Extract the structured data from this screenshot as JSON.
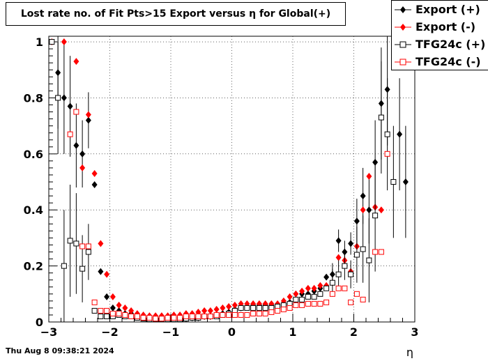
{
  "chart_data": {
    "type": "scatter",
    "title": "Lost rate no. of Fit Pts>15 Export versus η for Global(+)",
    "xlabel": "η",
    "ylabel": "",
    "xlim": [
      -3,
      3
    ],
    "ylim": [
      0,
      1.02
    ],
    "x_ticks": [
      "−3",
      "−2",
      "−1",
      "0",
      "1",
      "2",
      "3"
    ],
    "y_ticks": [
      "0",
      "0.2",
      "0.4",
      "0.6",
      "0.8",
      "1"
    ],
    "grid": true,
    "legend_position": "top-right",
    "timestamp": "Thu Aug  8 09:38:21 2024",
    "series": [
      {
        "name": "Export (+)",
        "color": "#000000",
        "marker": "diamond-filled",
        "points": [
          [
            -2.85,
            0.89,
            0.2
          ],
          [
            -2.75,
            0.8,
            0.2
          ],
          [
            -2.65,
            0.77,
            0.18
          ],
          [
            -2.55,
            0.63,
            0.15
          ],
          [
            -2.45,
            0.6,
            0.12
          ],
          [
            -2.35,
            0.72,
            0.1
          ],
          [
            -2.25,
            0.49,
            0.0
          ],
          [
            -2.15,
            0.18,
            0.0
          ],
          [
            -2.05,
            0.09,
            0.0
          ],
          [
            -1.95,
            0.05,
            0.0
          ],
          [
            -1.85,
            0.04,
            0.0
          ],
          [
            -1.75,
            0.03,
            0.0
          ],
          [
            -1.65,
            0.03,
            0.0
          ],
          [
            -1.55,
            0.02,
            0.0
          ],
          [
            -1.45,
            0.02,
            0.0
          ],
          [
            -1.35,
            0.015,
            0.0
          ],
          [
            -1.25,
            0.015,
            0.0
          ],
          [
            -1.15,
            0.015,
            0.0
          ],
          [
            -1.05,
            0.012,
            0.0
          ],
          [
            -0.95,
            0.012,
            0.0
          ],
          [
            -0.85,
            0.012,
            0.0
          ],
          [
            -0.75,
            0.012,
            0.0
          ],
          [
            -0.65,
            0.015,
            0.0
          ],
          [
            -0.55,
            0.015,
            0.0
          ],
          [
            -0.45,
            0.02,
            0.0
          ],
          [
            -0.35,
            0.02,
            0.0
          ],
          [
            -0.25,
            0.025,
            0.0
          ],
          [
            -0.15,
            0.03,
            0.0
          ],
          [
            -0.05,
            0.035,
            0.0
          ],
          [
            0.05,
            0.045,
            0.0
          ],
          [
            0.15,
            0.05,
            0.0
          ],
          [
            0.25,
            0.055,
            0.0
          ],
          [
            0.35,
            0.06,
            0.0
          ],
          [
            0.45,
            0.06,
            0.0
          ],
          [
            0.55,
            0.06,
            0.0
          ],
          [
            0.65,
            0.06,
            0.0
          ],
          [
            0.75,
            0.06,
            0.0
          ],
          [
            0.85,
            0.065,
            0.0
          ],
          [
            0.95,
            0.07,
            0.0
          ],
          [
            1.05,
            0.08,
            0.0
          ],
          [
            1.15,
            0.1,
            0.0
          ],
          [
            1.25,
            0.1,
            0.0
          ],
          [
            1.35,
            0.11,
            0.0
          ],
          [
            1.45,
            0.12,
            0.0
          ],
          [
            1.55,
            0.16,
            0.0
          ],
          [
            1.65,
            0.17,
            0.04
          ],
          [
            1.75,
            0.29,
            0.04
          ],
          [
            1.85,
            0.25,
            0.04
          ],
          [
            1.95,
            0.28,
            0.04
          ],
          [
            2.05,
            0.36,
            0.08
          ],
          [
            2.15,
            0.45,
            0.1
          ],
          [
            2.25,
            0.4,
            0.12
          ],
          [
            2.35,
            0.57,
            0.15
          ],
          [
            2.45,
            0.78,
            0.2
          ],
          [
            2.55,
            0.83,
            0.2
          ],
          [
            2.75,
            0.67,
            0.2
          ],
          [
            2.85,
            0.5,
            0.2
          ]
        ]
      },
      {
        "name": "Export (-)",
        "color": "#ff0000",
        "marker": "diamond-filled",
        "points": [
          [
            -2.95,
            1.0,
            0.0
          ],
          [
            -2.75,
            1.0,
            0.0
          ],
          [
            -2.65,
            0.67,
            0.0
          ],
          [
            -2.55,
            0.93,
            0.0
          ],
          [
            -2.45,
            0.55,
            0.0
          ],
          [
            -2.35,
            0.74,
            0.0
          ],
          [
            -2.25,
            0.53,
            0.0
          ],
          [
            -2.15,
            0.28,
            0.0
          ],
          [
            -2.05,
            0.17,
            0.0
          ],
          [
            -1.95,
            0.09,
            0.0
          ],
          [
            -1.85,
            0.06,
            0.0
          ],
          [
            -1.75,
            0.05,
            0.0
          ],
          [
            -1.65,
            0.04,
            0.0
          ],
          [
            -1.55,
            0.03,
            0.0
          ],
          [
            -1.45,
            0.025,
            0.0
          ],
          [
            -1.35,
            0.022,
            0.0
          ],
          [
            -1.25,
            0.022,
            0.0
          ],
          [
            -1.15,
            0.022,
            0.0
          ],
          [
            -1.05,
            0.022,
            0.0
          ],
          [
            -0.95,
            0.025,
            0.0
          ],
          [
            -0.85,
            0.025,
            0.0
          ],
          [
            -0.75,
            0.03,
            0.0
          ],
          [
            -0.65,
            0.03,
            0.0
          ],
          [
            -0.55,
            0.035,
            0.0
          ],
          [
            -0.45,
            0.04,
            0.0
          ],
          [
            -0.35,
            0.04,
            0.0
          ],
          [
            -0.25,
            0.045,
            0.0
          ],
          [
            -0.15,
            0.05,
            0.0
          ],
          [
            -0.05,
            0.055,
            0.0
          ],
          [
            0.05,
            0.06,
            0.0
          ],
          [
            0.15,
            0.065,
            0.0
          ],
          [
            0.25,
            0.065,
            0.0
          ],
          [
            0.35,
            0.065,
            0.0
          ],
          [
            0.45,
            0.065,
            0.0
          ],
          [
            0.55,
            0.065,
            0.0
          ],
          [
            0.65,
            0.065,
            0.0
          ],
          [
            0.75,
            0.065,
            0.0
          ],
          [
            0.85,
            0.075,
            0.0
          ],
          [
            0.95,
            0.09,
            0.0
          ],
          [
            1.05,
            0.1,
            0.0
          ],
          [
            1.15,
            0.11,
            0.0
          ],
          [
            1.25,
            0.12,
            0.0
          ],
          [
            1.35,
            0.12,
            0.0
          ],
          [
            1.45,
            0.13,
            0.0
          ],
          [
            1.55,
            0.13,
            0.0
          ],
          [
            1.65,
            0.14,
            0.0
          ],
          [
            1.75,
            0.23,
            0.0
          ],
          [
            1.85,
            0.22,
            0.0
          ],
          [
            1.95,
            0.18,
            0.0
          ],
          [
            2.05,
            0.27,
            0.0
          ],
          [
            2.15,
            0.4,
            0.0
          ],
          [
            2.25,
            0.52,
            0.0
          ],
          [
            2.35,
            0.41,
            0.0
          ],
          [
            2.45,
            0.4,
            0.0
          ]
        ]
      },
      {
        "name": "TFG24c (+)",
        "color": "#000000",
        "marker": "square-open",
        "points": [
          [
            -2.95,
            1.0,
            0.0
          ],
          [
            -2.85,
            0.8,
            0.2
          ],
          [
            -2.75,
            0.2,
            0.2
          ],
          [
            -2.65,
            0.29,
            0.2
          ],
          [
            -2.55,
            0.28,
            0.18
          ],
          [
            -2.45,
            0.19,
            0.12
          ],
          [
            -2.35,
            0.25,
            0.1
          ],
          [
            -2.25,
            0.04,
            0.0
          ],
          [
            -2.15,
            0.02,
            0.0
          ],
          [
            -2.05,
            0.02,
            0.0
          ],
          [
            -1.95,
            0.02,
            0.0
          ],
          [
            -1.85,
            0.025,
            0.0
          ],
          [
            -1.75,
            0.02,
            0.0
          ],
          [
            -1.65,
            0.02,
            0.0
          ],
          [
            -1.55,
            0.015,
            0.0
          ],
          [
            -1.45,
            0.012,
            0.0
          ],
          [
            -1.35,
            0.01,
            0.0
          ],
          [
            -1.25,
            0.01,
            0.0
          ],
          [
            -1.15,
            0.01,
            0.0
          ],
          [
            -1.05,
            0.01,
            0.0
          ],
          [
            -0.95,
            0.01,
            0.0
          ],
          [
            -0.85,
            0.01,
            0.0
          ],
          [
            -0.75,
            0.012,
            0.0
          ],
          [
            -0.65,
            0.015,
            0.0
          ],
          [
            -0.55,
            0.015,
            0.0
          ],
          [
            -0.45,
            0.02,
            0.0
          ],
          [
            -0.35,
            0.02,
            0.0
          ],
          [
            -0.25,
            0.02,
            0.0
          ],
          [
            -0.15,
            0.025,
            0.0
          ],
          [
            -0.05,
            0.03,
            0.0
          ],
          [
            0.05,
            0.04,
            0.0
          ],
          [
            0.15,
            0.05,
            0.0
          ],
          [
            0.25,
            0.05,
            0.0
          ],
          [
            0.35,
            0.05,
            0.0
          ],
          [
            0.45,
            0.05,
            0.0
          ],
          [
            0.55,
            0.05,
            0.0
          ],
          [
            0.65,
            0.05,
            0.0
          ],
          [
            0.75,
            0.055,
            0.0
          ],
          [
            0.85,
            0.06,
            0.0
          ],
          [
            0.95,
            0.065,
            0.0
          ],
          [
            1.05,
            0.08,
            0.0
          ],
          [
            1.15,
            0.08,
            0.0
          ],
          [
            1.25,
            0.09,
            0.0
          ],
          [
            1.35,
            0.09,
            0.0
          ],
          [
            1.45,
            0.1,
            0.0
          ],
          [
            1.55,
            0.12,
            0.0
          ],
          [
            1.65,
            0.14,
            0.05
          ],
          [
            1.75,
            0.17,
            0.05
          ],
          [
            1.85,
            0.2,
            0.05
          ],
          [
            1.95,
            0.17,
            0.05
          ],
          [
            2.05,
            0.24,
            0.1
          ],
          [
            2.15,
            0.26,
            0.12
          ],
          [
            2.25,
            0.22,
            0.15
          ],
          [
            2.35,
            0.38,
            0.2
          ],
          [
            2.45,
            0.73,
            0.2
          ],
          [
            2.55,
            0.67,
            0.2
          ],
          [
            2.65,
            0.5,
            0.2
          ]
        ]
      },
      {
        "name": "TFG24c (-)",
        "color": "#ff0000",
        "marker": "square-open",
        "points": [
          [
            -2.65,
            0.67,
            0.0
          ],
          [
            -2.55,
            0.75,
            0.0
          ],
          [
            -2.45,
            0.27,
            0.0
          ],
          [
            -2.35,
            0.27,
            0.0
          ],
          [
            -2.25,
            0.07,
            0.0
          ],
          [
            -2.15,
            0.04,
            0.0
          ],
          [
            -2.05,
            0.04,
            0.0
          ],
          [
            -1.95,
            0.03,
            0.0
          ],
          [
            -1.85,
            0.03,
            0.0
          ],
          [
            -1.75,
            0.025,
            0.0
          ],
          [
            -1.65,
            0.02,
            0.0
          ],
          [
            -1.55,
            0.02,
            0.0
          ],
          [
            -1.45,
            0.015,
            0.0
          ],
          [
            -1.35,
            0.015,
            0.0
          ],
          [
            -1.25,
            0.012,
            0.0
          ],
          [
            -1.15,
            0.012,
            0.0
          ],
          [
            -1.05,
            0.015,
            0.0
          ],
          [
            -0.95,
            0.015,
            0.0
          ],
          [
            -0.85,
            0.015,
            0.0
          ],
          [
            -0.75,
            0.02,
            0.0
          ],
          [
            -0.65,
            0.02,
            0.0
          ],
          [
            -0.55,
            0.02,
            0.0
          ],
          [
            -0.45,
            0.02,
            0.0
          ],
          [
            -0.35,
            0.02,
            0.0
          ],
          [
            -0.25,
            0.025,
            0.0
          ],
          [
            -0.15,
            0.025,
            0.0
          ],
          [
            -0.05,
            0.025,
            0.0
          ],
          [
            0.05,
            0.025,
            0.0
          ],
          [
            0.15,
            0.025,
            0.0
          ],
          [
            0.25,
            0.025,
            0.0
          ],
          [
            0.35,
            0.03,
            0.0
          ],
          [
            0.45,
            0.03,
            0.0
          ],
          [
            0.55,
            0.03,
            0.0
          ],
          [
            0.65,
            0.035,
            0.0
          ],
          [
            0.75,
            0.04,
            0.0
          ],
          [
            0.85,
            0.045,
            0.0
          ],
          [
            0.95,
            0.05,
            0.0
          ],
          [
            1.05,
            0.06,
            0.0
          ],
          [
            1.15,
            0.06,
            0.0
          ],
          [
            1.25,
            0.065,
            0.0
          ],
          [
            1.35,
            0.065,
            0.0
          ],
          [
            1.45,
            0.065,
            0.0
          ],
          [
            1.55,
            0.07,
            0.0
          ],
          [
            1.65,
            0.1,
            0.0
          ],
          [
            1.75,
            0.12,
            0.0
          ],
          [
            1.85,
            0.12,
            0.0
          ],
          [
            1.95,
            0.07,
            0.0
          ],
          [
            2.05,
            0.1,
            0.0
          ],
          [
            2.15,
            0.08,
            0.0
          ],
          [
            2.35,
            0.25,
            0.0
          ],
          [
            2.45,
            0.25,
            0.0
          ],
          [
            2.55,
            0.6,
            0.0
          ]
        ]
      }
    ]
  }
}
